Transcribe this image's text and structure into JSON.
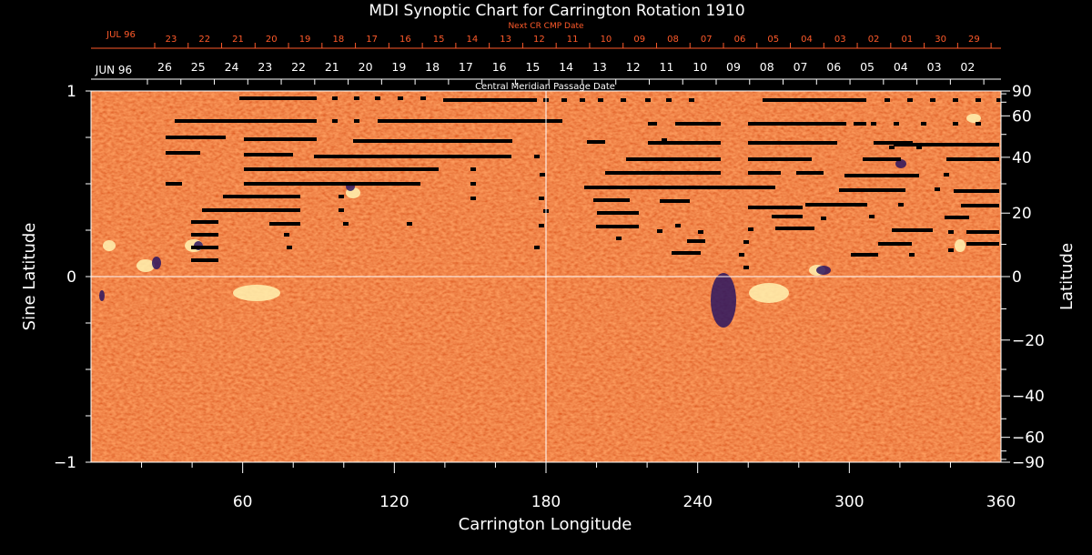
{
  "chart_data": {
    "type": "heatmap",
    "title": "MDI Synoptic Chart for Carrington Rotation 1910",
    "xlabel": "Carrington Longitude",
    "ylabel_left": "Sine Latitude",
    "ylabel_right": "Latitude",
    "xlim": [
      0,
      360
    ],
    "ylim": [
      -1,
      1
    ],
    "x_ticks": [
      60,
      120,
      180,
      240,
      300,
      360
    ],
    "y_ticks_left": [
      {
        "value": 1,
        "label": "1"
      },
      {
        "value": 0,
        "label": "0"
      },
      {
        "value": -1,
        "label": "−1"
      }
    ],
    "y_ticks_right_deg": [
      90,
      60,
      40,
      20,
      0,
      -20,
      -40,
      -60,
      -90
    ],
    "y_ticks_right_labels": [
      "90",
      "60",
      "40",
      "20",
      "0",
      "−20",
      "−40",
      "−60",
      "−90"
    ],
    "grid_lines": {
      "x": [
        180
      ],
      "y": [
        0
      ]
    },
    "top_axis_primary": {
      "caption": "Central Meridian Passage Date",
      "month_label": "JUN 96",
      "days": [
        "26",
        "25",
        "24",
        "23",
        "22",
        "21",
        "20",
        "19",
        "18",
        "17",
        "16",
        "15",
        "14",
        "13",
        "12",
        "11",
        "10",
        "09",
        "08",
        "07",
        "06",
        "05",
        "04",
        "03",
        "02"
      ]
    },
    "top_axis_secondary": {
      "caption": "Next CR CMP Date",
      "month_label": "JUL 96",
      "days": [
        "23",
        "22",
        "21",
        "20",
        "19",
        "18",
        "17",
        "16",
        "15",
        "14",
        "13",
        "12",
        "11",
        "10",
        "09",
        "08",
        "07",
        "06",
        "05",
        "04",
        "03",
        "02",
        "01",
        "30",
        "29"
      ]
    },
    "colors": {
      "background_field": "#ff4500",
      "positive_polarity": "#fff2b0",
      "negative_polarity": "#2a1560",
      "missing_data": "#000000",
      "secondary_axis_text": "#ff5a2a",
      "axis_text": "#ffffff"
    }
  }
}
